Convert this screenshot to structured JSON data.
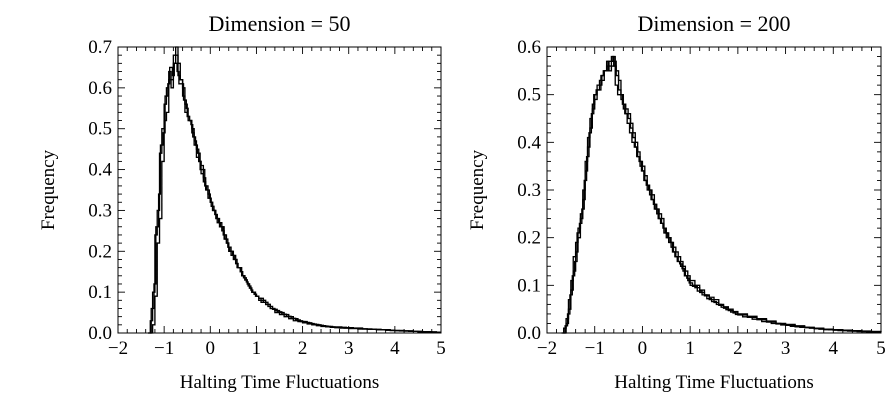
{
  "chart_data": [
    {
      "type": "line",
      "style": "step-histogram",
      "title": "Dimension = 50",
      "xlabel": "Halting Time Fluctuations",
      "ylabel": "Frequency",
      "xlim": [
        -2,
        5
      ],
      "ylim": [
        0,
        0.7
      ],
      "xticks": [
        "−2",
        "−1",
        "0",
        "1",
        "2",
        "3",
        "4",
        "5"
      ],
      "yticks": [
        "0.0",
        "0.1",
        "0.2",
        "0.3",
        "0.4",
        "0.5",
        "0.6",
        "0.7"
      ],
      "xtick_values": [
        -2,
        -1,
        0,
        1,
        2,
        3,
        4,
        5
      ],
      "ytick_values": [
        0,
        0.1,
        0.2,
        0.3,
        0.4,
        0.5,
        0.6,
        0.7
      ],
      "grid": false,
      "series": [
        {
          "x": [
            -1.35,
            -1.3,
            -1.25,
            -1.2,
            -1.15,
            -1.1,
            -1.05,
            -1.0,
            -0.95,
            -0.9,
            -0.85,
            -0.8,
            -0.75,
            -0.7,
            -0.65,
            -0.6,
            -0.55,
            -0.5,
            -0.45,
            -0.4,
            -0.35,
            -0.3,
            -0.25,
            -0.2,
            -0.15,
            -0.1,
            -0.05,
            0.0,
            0.05,
            0.1,
            0.15,
            0.2,
            0.25,
            0.3,
            0.35,
            0.4,
            0.45,
            0.5,
            0.55,
            0.6,
            0.65,
            0.7,
            0.75,
            0.8,
            0.85,
            0.9,
            0.95,
            1.0,
            1.05,
            1.1,
            1.2,
            1.3,
            1.4,
            1.5,
            1.6,
            1.7,
            1.8,
            1.9,
            2.0,
            2.1,
            2.2,
            2.3,
            2.4,
            2.5,
            2.6,
            2.7,
            2.8,
            2.9,
            3.0,
            3.2,
            3.4,
            3.6,
            3.8,
            4.0,
            4.2,
            4.4,
            4.6,
            4.8,
            5.0
          ],
          "values": [
            0.0,
            0.03,
            0.1,
            0.24,
            0.3,
            0.44,
            0.5,
            0.56,
            0.6,
            0.64,
            0.62,
            0.68,
            0.68,
            0.63,
            0.62,
            0.58,
            0.54,
            0.53,
            0.52,
            0.49,
            0.46,
            0.43,
            0.42,
            0.39,
            0.37,
            0.35,
            0.33,
            0.32,
            0.3,
            0.29,
            0.28,
            0.27,
            0.26,
            0.24,
            0.22,
            0.21,
            0.2,
            0.19,
            0.17,
            0.16,
            0.15,
            0.14,
            0.13,
            0.12,
            0.11,
            0.1,
            0.095,
            0.09,
            0.085,
            0.08,
            0.07,
            0.06,
            0.055,
            0.05,
            0.045,
            0.04,
            0.035,
            0.03,
            0.028,
            0.025,
            0.022,
            0.02,
            0.018,
            0.016,
            0.015,
            0.014,
            0.013,
            0.012,
            0.011,
            0.01,
            0.009,
            0.008,
            0.007,
            0.006,
            0.005,
            0.004,
            0.003,
            0.002,
            0.002
          ]
        },
        {
          "x": [
            -1.3,
            -1.25,
            -1.2,
            -1.15,
            -1.1,
            -1.05,
            -1.0,
            -0.95,
            -0.9,
            -0.85,
            -0.8,
            -0.75,
            -0.7,
            -0.65,
            -0.6,
            -0.55,
            -0.5,
            -0.45,
            -0.4,
            -0.35,
            -0.3,
            -0.25,
            -0.2,
            -0.15,
            -0.1,
            -0.05,
            0.0,
            0.05,
            0.1,
            0.15,
            0.2,
            0.25,
            0.3,
            0.35,
            0.4,
            0.45,
            0.5,
            0.55,
            0.6,
            0.65,
            0.7,
            0.75,
            0.8,
            0.85,
            0.9,
            0.95,
            1.0,
            1.05,
            1.1,
            1.2,
            1.3,
            1.4,
            1.5,
            1.6,
            1.7,
            1.8,
            1.9,
            2.0,
            2.1,
            2.2,
            2.3,
            2.4,
            2.5,
            2.6,
            2.7,
            2.8,
            2.9,
            3.0,
            3.2,
            3.4,
            3.6,
            3.8,
            4.0,
            4.2,
            4.4,
            4.6,
            4.8,
            5.0
          ],
          "values": [
            0.0,
            0.02,
            0.09,
            0.22,
            0.28,
            0.42,
            0.52,
            0.54,
            0.62,
            0.6,
            0.66,
            0.7,
            0.66,
            0.62,
            0.6,
            0.56,
            0.53,
            0.52,
            0.5,
            0.47,
            0.45,
            0.42,
            0.41,
            0.38,
            0.36,
            0.34,
            0.32,
            0.3,
            0.29,
            0.27,
            0.26,
            0.25,
            0.23,
            0.22,
            0.2,
            0.19,
            0.18,
            0.17,
            0.16,
            0.15,
            0.14,
            0.13,
            0.12,
            0.11,
            0.1,
            0.095,
            0.09,
            0.08,
            0.075,
            0.07,
            0.06,
            0.05,
            0.045,
            0.04,
            0.035,
            0.03,
            0.028,
            0.025,
            0.022,
            0.02,
            0.018,
            0.016,
            0.015,
            0.014,
            0.013,
            0.012,
            0.012,
            0.011,
            0.01,
            0.009,
            0.008,
            0.007,
            0.006,
            0.005,
            0.004,
            0.003,
            0.002,
            0.002
          ]
        },
        {
          "x": [
            -1.35,
            -1.28,
            -1.22,
            -1.18,
            -1.12,
            -1.08,
            -1.02,
            -0.98,
            -0.92,
            -0.88,
            -0.82,
            -0.78,
            -0.72,
            -0.68,
            -0.62,
            -0.58,
            -0.52,
            -0.48,
            -0.42,
            -0.38,
            -0.32,
            -0.28,
            -0.22,
            -0.18,
            -0.12,
            -0.08,
            -0.02,
            0.02,
            0.08,
            0.12,
            0.18,
            0.22,
            0.28,
            0.32,
            0.38,
            0.42,
            0.48,
            0.52,
            0.58,
            0.62,
            0.68,
            0.72,
            0.78,
            0.82,
            0.88,
            0.92,
            0.98,
            1.05,
            1.15,
            1.25,
            1.35,
            1.45,
            1.55,
            1.65,
            1.75,
            1.85,
            1.95,
            2.05,
            2.15,
            2.25,
            2.35,
            2.45,
            2.55,
            2.65,
            2.75,
            2.85,
            2.95,
            3.1,
            3.3,
            3.5,
            3.7,
            3.9,
            4.1,
            4.3,
            4.5,
            4.7,
            4.9,
            5.0
          ],
          "values": [
            0.0,
            0.06,
            0.12,
            0.26,
            0.34,
            0.46,
            0.49,
            0.58,
            0.61,
            0.65,
            0.63,
            0.66,
            0.64,
            0.61,
            0.61,
            0.57,
            0.55,
            0.52,
            0.51,
            0.48,
            0.46,
            0.44,
            0.4,
            0.4,
            0.36,
            0.35,
            0.33,
            0.31,
            0.3,
            0.28,
            0.27,
            0.26,
            0.24,
            0.23,
            0.21,
            0.2,
            0.19,
            0.18,
            0.16,
            0.16,
            0.14,
            0.135,
            0.125,
            0.115,
            0.105,
            0.1,
            0.09,
            0.085,
            0.075,
            0.065,
            0.058,
            0.052,
            0.046,
            0.041,
            0.036,
            0.032,
            0.028,
            0.026,
            0.023,
            0.021,
            0.019,
            0.017,
            0.016,
            0.015,
            0.015,
            0.014,
            0.013,
            0.012,
            0.01,
            0.009,
            0.008,
            0.006,
            0.005,
            0.004,
            0.003,
            0.003,
            0.002,
            0.002
          ]
        }
      ]
    },
    {
      "type": "line",
      "style": "step-histogram",
      "title": "Dimension = 200",
      "xlabel": "Halting Time Fluctuations",
      "ylabel": "Frequency",
      "xlim": [
        -2,
        5
      ],
      "ylim": [
        0,
        0.6
      ],
      "xticks": [
        "−2",
        "−1",
        "0",
        "1",
        "2",
        "3",
        "4",
        "5"
      ],
      "yticks": [
        "0.0",
        "0.1",
        "0.2",
        "0.3",
        "0.4",
        "0.5",
        "0.6"
      ],
      "xtick_values": [
        -2,
        -1,
        0,
        1,
        2,
        3,
        4,
        5
      ],
      "ytick_values": [
        0,
        0.1,
        0.2,
        0.3,
        0.4,
        0.5,
        0.6
      ],
      "grid": false,
      "series": [
        {
          "x": [
            -1.7,
            -1.65,
            -1.6,
            -1.55,
            -1.5,
            -1.45,
            -1.4,
            -1.35,
            -1.3,
            -1.25,
            -1.2,
            -1.15,
            -1.1,
            -1.05,
            -1.0,
            -0.95,
            -0.9,
            -0.85,
            -0.8,
            -0.75,
            -0.7,
            -0.65,
            -0.6,
            -0.55,
            -0.5,
            -0.45,
            -0.4,
            -0.35,
            -0.3,
            -0.25,
            -0.2,
            -0.15,
            -0.1,
            -0.05,
            0.0,
            0.05,
            0.1,
            0.15,
            0.2,
            0.25,
            0.3,
            0.35,
            0.4,
            0.45,
            0.5,
            0.55,
            0.6,
            0.65,
            0.7,
            0.75,
            0.8,
            0.85,
            0.9,
            0.95,
            1.0,
            1.1,
            1.2,
            1.3,
            1.4,
            1.5,
            1.6,
            1.7,
            1.8,
            1.9,
            2.0,
            2.2,
            2.4,
            2.6,
            2.8,
            3.0,
            3.2,
            3.4,
            3.6,
            3.8,
            4.0,
            4.2,
            4.4,
            4.6,
            4.8,
            5.0
          ],
          "values": [
            0.0,
            0.01,
            0.03,
            0.07,
            0.11,
            0.16,
            0.19,
            0.22,
            0.25,
            0.3,
            0.36,
            0.41,
            0.45,
            0.48,
            0.5,
            0.52,
            0.53,
            0.54,
            0.55,
            0.56,
            0.55,
            0.56,
            0.57,
            0.55,
            0.53,
            0.5,
            0.48,
            0.47,
            0.46,
            0.44,
            0.42,
            0.4,
            0.38,
            0.36,
            0.35,
            0.33,
            0.31,
            0.3,
            0.29,
            0.27,
            0.26,
            0.25,
            0.24,
            0.22,
            0.21,
            0.2,
            0.19,
            0.18,
            0.17,
            0.16,
            0.15,
            0.14,
            0.13,
            0.12,
            0.11,
            0.1,
            0.09,
            0.08,
            0.075,
            0.07,
            0.06,
            0.055,
            0.05,
            0.045,
            0.04,
            0.035,
            0.03,
            0.025,
            0.02,
            0.018,
            0.015,
            0.012,
            0.01,
            0.008,
            0.007,
            0.006,
            0.005,
            0.004,
            0.003,
            0.003
          ]
        },
        {
          "x": [
            -1.65,
            -1.6,
            -1.55,
            -1.5,
            -1.45,
            -1.4,
            -1.35,
            -1.3,
            -1.25,
            -1.2,
            -1.15,
            -1.1,
            -1.05,
            -1.0,
            -0.95,
            -0.9,
            -0.85,
            -0.8,
            -0.75,
            -0.7,
            -0.65,
            -0.6,
            -0.55,
            -0.5,
            -0.45,
            -0.4,
            -0.35,
            -0.3,
            -0.25,
            -0.2,
            -0.15,
            -0.1,
            -0.05,
            0.0,
            0.05,
            0.1,
            0.15,
            0.2,
            0.25,
            0.3,
            0.35,
            0.4,
            0.45,
            0.5,
            0.55,
            0.6,
            0.65,
            0.7,
            0.75,
            0.8,
            0.85,
            0.9,
            0.95,
            1.0,
            1.1,
            1.2,
            1.3,
            1.4,
            1.5,
            1.6,
            1.7,
            1.8,
            1.9,
            2.0,
            2.2,
            2.4,
            2.6,
            2.8,
            3.0,
            3.2,
            3.4,
            3.6,
            3.8,
            4.0,
            4.2,
            4.4,
            4.6,
            4.8,
            5.0
          ],
          "values": [
            0.0,
            0.02,
            0.05,
            0.09,
            0.13,
            0.17,
            0.2,
            0.24,
            0.28,
            0.34,
            0.39,
            0.43,
            0.47,
            0.49,
            0.51,
            0.52,
            0.53,
            0.55,
            0.57,
            0.56,
            0.58,
            0.56,
            0.54,
            0.51,
            0.49,
            0.47,
            0.46,
            0.45,
            0.43,
            0.41,
            0.39,
            0.37,
            0.35,
            0.34,
            0.32,
            0.3,
            0.29,
            0.28,
            0.26,
            0.25,
            0.24,
            0.23,
            0.21,
            0.2,
            0.19,
            0.18,
            0.17,
            0.16,
            0.15,
            0.14,
            0.13,
            0.12,
            0.11,
            0.1,
            0.095,
            0.085,
            0.078,
            0.07,
            0.064,
            0.058,
            0.052,
            0.047,
            0.042,
            0.038,
            0.033,
            0.028,
            0.023,
            0.019,
            0.016,
            0.013,
            0.011,
            0.009,
            0.007,
            0.006,
            0.005,
            0.004,
            0.003,
            0.003,
            0.002
          ]
        },
        {
          "x": [
            -1.68,
            -1.62,
            -1.57,
            -1.52,
            -1.47,
            -1.42,
            -1.37,
            -1.32,
            -1.27,
            -1.22,
            -1.17,
            -1.12,
            -1.07,
            -1.02,
            -0.97,
            -0.92,
            -0.87,
            -0.82,
            -0.77,
            -0.72,
            -0.67,
            -0.62,
            -0.57,
            -0.52,
            -0.47,
            -0.42,
            -0.37,
            -0.32,
            -0.27,
            -0.22,
            -0.17,
            -0.12,
            -0.07,
            -0.02,
            0.03,
            0.08,
            0.13,
            0.18,
            0.23,
            0.28,
            0.33,
            0.38,
            0.43,
            0.48,
            0.53,
            0.58,
            0.63,
            0.68,
            0.73,
            0.78,
            0.83,
            0.88,
            0.93,
            0.98,
            1.05,
            1.15,
            1.25,
            1.35,
            1.45,
            1.55,
            1.65,
            1.75,
            1.85,
            1.95,
            2.1,
            2.3,
            2.5,
            2.7,
            2.9,
            3.1,
            3.3,
            3.5,
            3.7,
            3.9,
            4.1,
            4.3,
            4.5,
            4.7,
            4.9,
            5.0
          ],
          "values": [
            0.0,
            0.015,
            0.04,
            0.08,
            0.12,
            0.15,
            0.21,
            0.23,
            0.26,
            0.32,
            0.37,
            0.42,
            0.46,
            0.5,
            0.51,
            0.51,
            0.54,
            0.55,
            0.55,
            0.57,
            0.57,
            0.58,
            0.52,
            0.5,
            0.5,
            0.48,
            0.46,
            0.44,
            0.42,
            0.4,
            0.39,
            0.37,
            0.36,
            0.34,
            0.32,
            0.31,
            0.3,
            0.28,
            0.27,
            0.26,
            0.24,
            0.23,
            0.22,
            0.21,
            0.2,
            0.19,
            0.17,
            0.16,
            0.15,
            0.145,
            0.135,
            0.12,
            0.115,
            0.105,
            0.098,
            0.088,
            0.08,
            0.072,
            0.066,
            0.06,
            0.054,
            0.049,
            0.044,
            0.039,
            0.034,
            0.029,
            0.024,
            0.02,
            0.017,
            0.014,
            0.012,
            0.01,
            0.008,
            0.007,
            0.005,
            0.004,
            0.003,
            0.002,
            0.002,
            0.002
          ]
        }
      ]
    }
  ]
}
